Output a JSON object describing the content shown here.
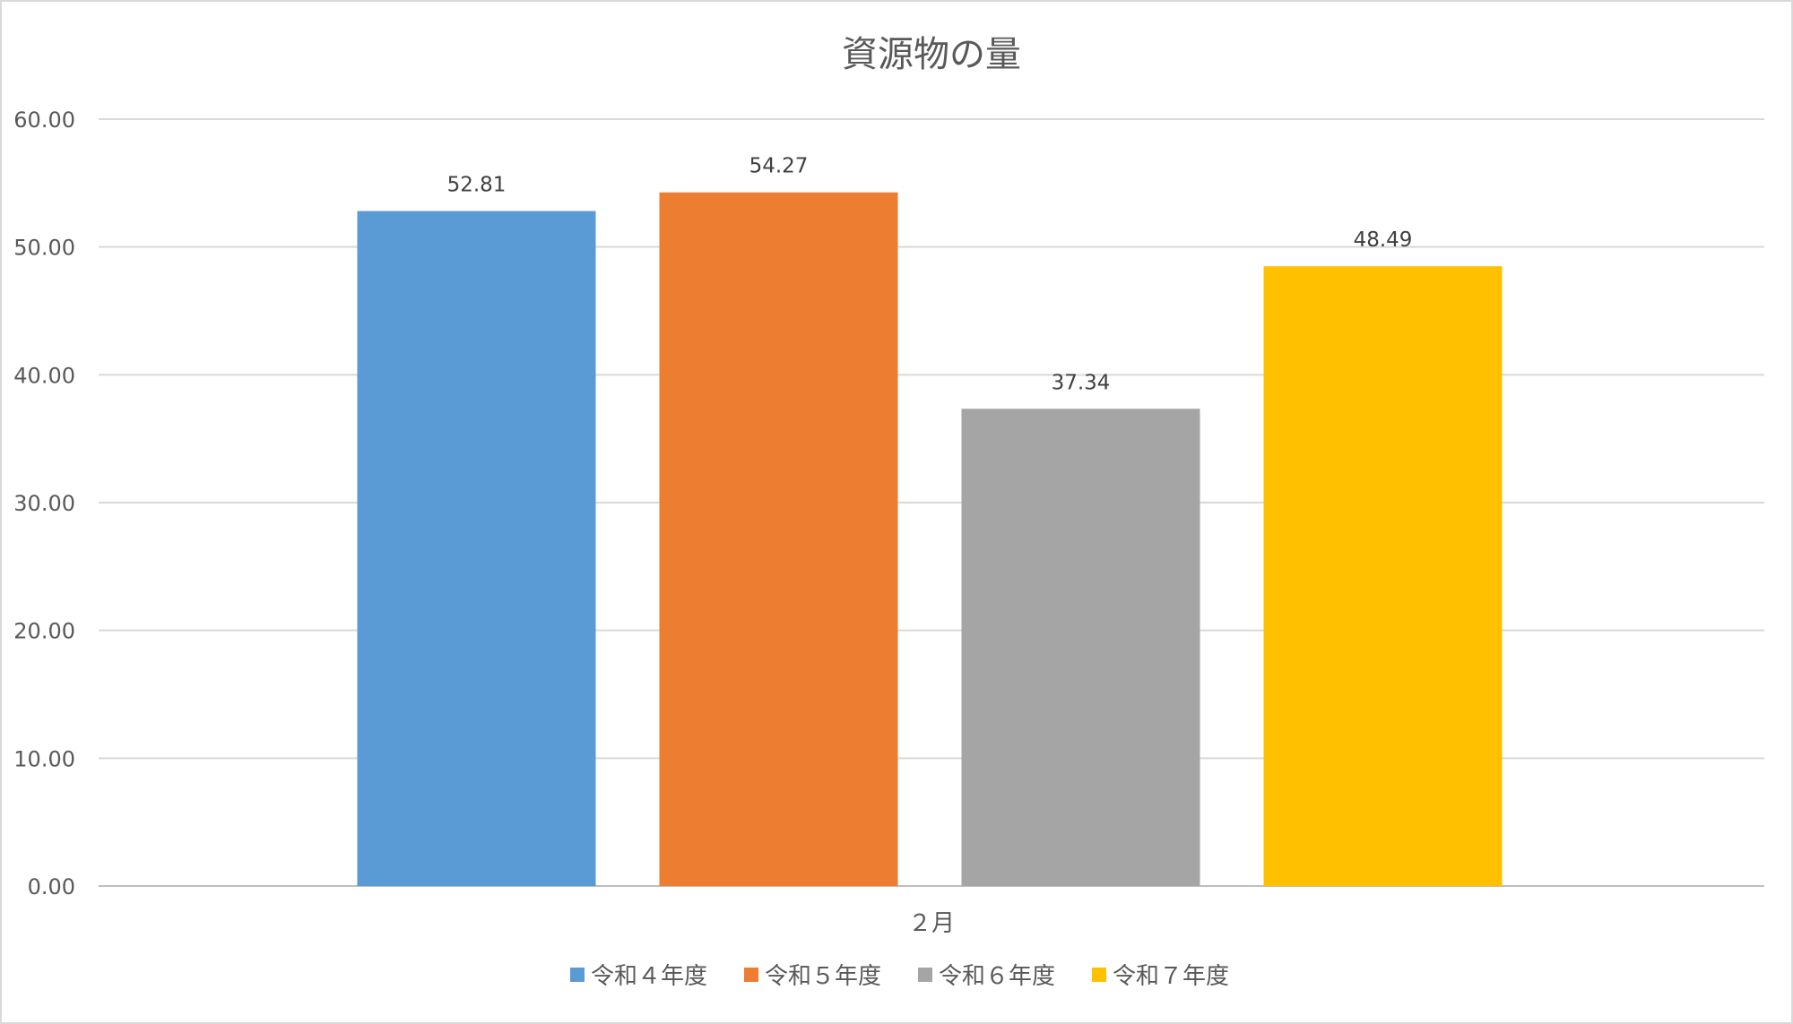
{
  "chart_data": {
    "type": "bar",
    "title": "資源物の量",
    "categories": [
      "２月"
    ],
    "series": [
      {
        "name": "令和４年度",
        "values": [
          52.81
        ],
        "color": "#5B9BD5"
      },
      {
        "name": "令和５年度",
        "values": [
          54.27
        ],
        "color": "#ED7D31"
      },
      {
        "name": "令和６年度",
        "values": [
          37.34
        ],
        "color": "#A5A5A5"
      },
      {
        "name": "令和７年度",
        "values": [
          48.49
        ],
        "color": "#FFC000"
      }
    ],
    "ylim": [
      0,
      60
    ],
    "yticks": [
      "0.00",
      "10.00",
      "20.00",
      "30.00",
      "40.00",
      "50.00",
      "60.00"
    ],
    "data_labels": [
      "52.81",
      "54.27",
      "37.34",
      "48.49"
    ],
    "grid": true,
    "legend_position": "bottom"
  }
}
